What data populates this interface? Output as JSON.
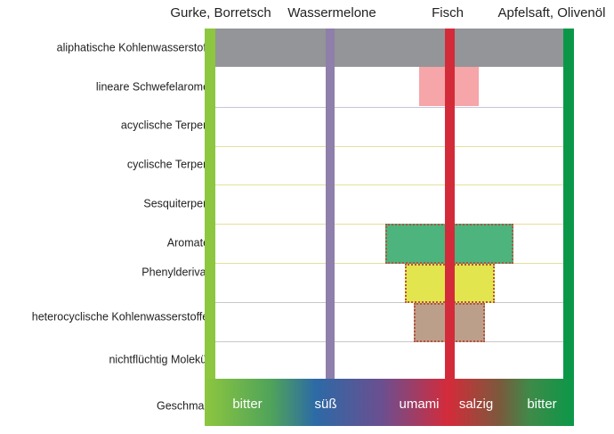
{
  "columns": [
    "Gurke, Borretsch",
    "Wassermelone",
    "Fisch",
    "Apfelsaft, Olivenöl"
  ],
  "rows": [
    "aliphatische Kohlenwasserstoffe",
    "lineare Schwefelaromen",
    "acyclische Terpene",
    "cyclische Terpene",
    "Sesquiterpene",
    "Aromaten",
    "Phenylderivate",
    "heterocyclische Kohlenwasserstoffe",
    "nichtflüchtig Moleküle",
    "Geschmack"
  ],
  "tastes": [
    "bitter",
    "süß",
    "umami",
    "salzig",
    "bitter"
  ],
  "colors": {
    "gurke": "#8dc63f",
    "wassermelone": "#8f7fab",
    "fisch": "#d42b3a",
    "apfelsaft": "#0a9848",
    "aliphatic": "#939598",
    "sulfur": "#f6a5a8",
    "aromaten": "#4cb47c",
    "phenyl": "#e3e54e",
    "heterocyclic": "#bc9f8a"
  }
}
